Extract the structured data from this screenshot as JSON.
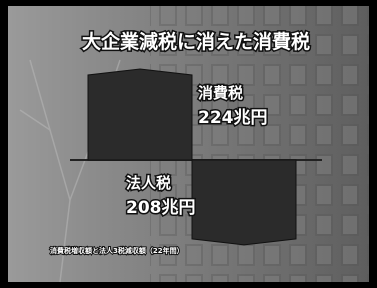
{
  "chart_data": {
    "type": "bar",
    "title": "大企業減税に消えた消費税",
    "categories": [
      "消費税",
      "法人税"
    ],
    "values": [
      224,
      -208
    ],
    "value_labels": [
      "224兆円",
      "208兆円"
    ],
    "color": "#2b2b2b",
    "note": "消費税増収額と法人3税減収額（22年間）"
  }
}
